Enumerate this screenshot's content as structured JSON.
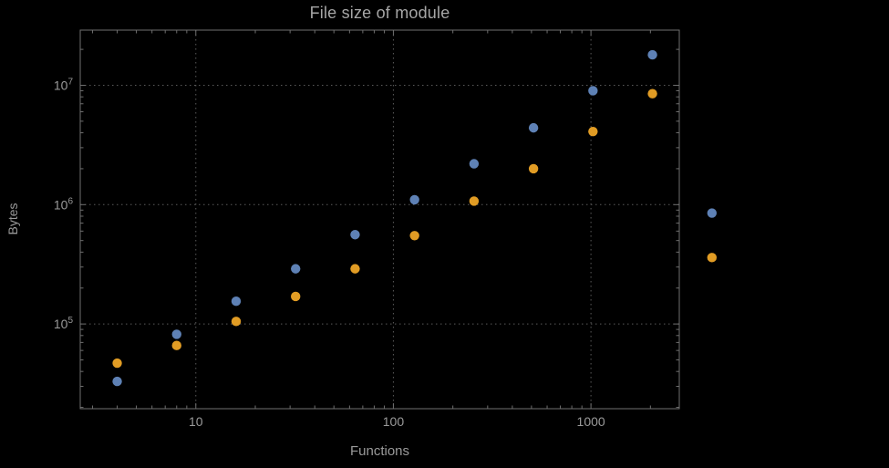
{
  "colors": {
    "background": "#000000",
    "frame": "#6f6f6f",
    "grid": "#5a5a5a",
    "tick_text": "#9a9a9a",
    "title_text": "#a6a6a6",
    "series_blue": "#5E81B5",
    "series_orange": "#E19C24"
  },
  "chart_data": {
    "type": "scatter",
    "title": "File size of module",
    "xlabel": "Functions",
    "ylabel": "Bytes",
    "x_scale": "log",
    "y_scale": "log",
    "xlim": [
      2.6,
      2800
    ],
    "ylim": [
      19500,
      29000000
    ],
    "grid": "dotted, at decade lines only",
    "legend": "none",
    "marker": {
      "shape": "circle",
      "radius": 5.2
    },
    "x_ticks": [
      {
        "value": 10,
        "label": "10"
      },
      {
        "value": 100,
        "label": "100"
      },
      {
        "value": 1000,
        "label": "1000"
      }
    ],
    "y_ticks": [
      {
        "value": 100000,
        "mantissa": "10",
        "exponent": "5"
      },
      {
        "value": 1000000,
        "mantissa": "10",
        "exponent": "6"
      },
      {
        "value": 10000000,
        "mantissa": "10",
        "exponent": "7"
      }
    ],
    "series": [
      {
        "name": "blue",
        "color": "#5E81B5",
        "points": [
          [
            4,
            33000
          ],
          [
            8,
            82000
          ],
          [
            16,
            155000
          ],
          [
            32,
            290000
          ],
          [
            64,
            560000
          ],
          [
            128,
            1100000
          ],
          [
            256,
            2200000
          ],
          [
            512,
            4400000
          ],
          [
            1024,
            9000000
          ],
          [
            2048,
            18000000
          ],
          [
            4096,
            850000
          ]
        ]
      },
      {
        "name": "orange",
        "color": "#E19C24",
        "points": [
          [
            4,
            47000
          ],
          [
            8,
            66000
          ],
          [
            16,
            105000
          ],
          [
            32,
            170000
          ],
          [
            64,
            290000
          ],
          [
            128,
            550000
          ],
          [
            256,
            1070000
          ],
          [
            512,
            2000000
          ],
          [
            1024,
            4100000
          ],
          [
            2048,
            8500000
          ],
          [
            4096,
            360000
          ]
        ]
      }
    ]
  }
}
